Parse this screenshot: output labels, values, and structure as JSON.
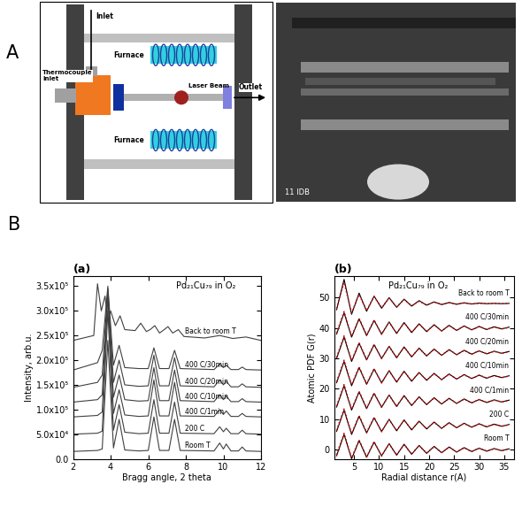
{
  "panel_labels": [
    "A",
    "B"
  ],
  "diagram": {
    "inlet": "Inlet",
    "thermocouple_inlet": "Thermocouple inlet",
    "furnace": [
      "Furnace",
      "Furnace"
    ],
    "laser_beam": "Laser Beam",
    "outlet": "Outlet",
    "photo_caption": "11 IDB"
  },
  "chart_data": [
    {
      "type": "line",
      "title": "(a)",
      "annotations": [
        "Pd₂₁Cu₇₉ in O₂"
      ],
      "x_label": "Bragg angle, 2 theta",
      "y_label": "Intensity, arb.u.",
      "xlim": [
        2,
        12
      ],
      "ylim": [
        0,
        370000
      ],
      "xticks": [
        2,
        4,
        6,
        8,
        10,
        12
      ],
      "yticks": [
        {
          "value": 0,
          "label": "0.0"
        },
        {
          "value": 50000,
          "label": "5.0x10⁴"
        },
        {
          "value": 100000,
          "label": "1.0x10⁵"
        },
        {
          "value": 150000,
          "label": "1.5x10⁵"
        },
        {
          "value": 200000,
          "label": "2.0x10⁵"
        },
        {
          "value": 250000,
          "label": "2.5x10⁵"
        },
        {
          "value": 300000,
          "label": "3.0x10⁵"
        },
        {
          "value": 350000,
          "label": "3.5x10⁵"
        }
      ],
      "series": [
        {
          "name": "Room T",
          "color": "#404040",
          "line_style": "solid",
          "x": [
            2.0,
            3.3,
            3.55,
            3.85,
            4.15,
            4.45,
            4.75,
            5.5,
            6.0,
            6.3,
            6.6,
            7.1,
            7.4,
            7.7,
            9.5,
            9.8,
            10.0,
            10.15,
            10.4,
            10.8,
            11.0,
            11.2,
            12.0
          ],
          "values": [
            15000,
            17000,
            20000,
            240000,
            22000,
            80000,
            18000,
            16000,
            17000,
            85000,
            17000,
            17000,
            80000,
            17000,
            16000,
            32000,
            20000,
            30000,
            16000,
            16000,
            24000,
            16000,
            15000
          ]
        },
        {
          "name": "200 C",
          "color": "#404040",
          "line_style": "solid",
          "x": [
            2.0,
            3.3,
            3.55,
            3.85,
            4.15,
            4.45,
            4.75,
            5.5,
            6.0,
            6.3,
            6.6,
            7.1,
            7.4,
            7.7,
            9.5,
            9.8,
            10.0,
            10.15,
            10.4,
            10.8,
            11.0,
            11.2,
            12.0
          ],
          "values": [
            50000,
            52000,
            56000,
            300000,
            58000,
            110000,
            54000,
            51000,
            52000,
            120000,
            52000,
            52000,
            115000,
            52000,
            51000,
            65000,
            55000,
            62000,
            51000,
            51000,
            58000,
            51000,
            50000
          ]
        },
        {
          "name": "400 C/1min",
          "color": "#404040",
          "line_style": "solid",
          "x": [
            2.0,
            3.3,
            3.55,
            3.85,
            4.15,
            4.45,
            4.75,
            5.5,
            6.0,
            6.3,
            6.6,
            7.1,
            7.4,
            7.7,
            9.5,
            9.8,
            10.0,
            10.15,
            10.4,
            10.8,
            11.0,
            11.2,
            12.0
          ],
          "values": [
            85000,
            88000,
            95000,
            330000,
            92000,
            140000,
            89000,
            86000,
            87000,
            160000,
            87000,
            87000,
            155000,
            87000,
            86000,
            100000,
            90000,
            97000,
            86000,
            86000,
            92000,
            86000,
            85000
          ]
        },
        {
          "name": "400 C/10min",
          "color": "#404040",
          "line_style": "solid",
          "x": [
            2.0,
            3.3,
            3.55,
            3.85,
            4.15,
            4.45,
            4.75,
            5.5,
            6.0,
            6.3,
            6.6,
            7.1,
            7.4,
            7.7,
            9.5,
            9.8,
            10.0,
            10.15,
            10.4,
            10.8,
            11.0,
            11.2,
            12.0
          ],
          "values": [
            115000,
            120000,
            130000,
            340000,
            125000,
            170000,
            120000,
            117000,
            118000,
            185000,
            118000,
            118000,
            180000,
            118000,
            116000,
            130000,
            120000,
            127000,
            116000,
            116000,
            122000,
            116000,
            115000
          ]
        },
        {
          "name": "400 C/20min",
          "color": "#404040",
          "line_style": "solid",
          "x": [
            2.0,
            3.3,
            3.55,
            3.85,
            4.15,
            4.45,
            4.75,
            5.5,
            6.0,
            6.3,
            6.6,
            7.1,
            7.4,
            7.7,
            9.5,
            9.8,
            10.0,
            10.15,
            10.4,
            10.8,
            11.0,
            11.2,
            12.0
          ],
          "values": [
            145000,
            155000,
            170000,
            345000,
            155000,
            200000,
            150000,
            147000,
            148000,
            210000,
            148000,
            148000,
            205000,
            148000,
            146000,
            160000,
            150000,
            157000,
            146000,
            146000,
            152000,
            146000,
            145000
          ]
        },
        {
          "name": "400 C/30min",
          "color": "#404040",
          "line_style": "solid",
          "x": [
            2.0,
            3.3,
            3.55,
            3.85,
            4.15,
            4.45,
            4.75,
            5.5,
            6.0,
            6.3,
            6.6,
            7.1,
            7.4,
            7.7,
            9.5,
            9.8,
            10.0,
            10.15,
            10.4,
            10.8,
            11.0,
            11.2,
            12.0
          ],
          "values": [
            180000,
            195000,
            220000,
            350000,
            190000,
            230000,
            185000,
            183000,
            183000,
            225000,
            183000,
            183000,
            220000,
            183000,
            181000,
            192000,
            185000,
            190000,
            181000,
            181000,
            186000,
            181000,
            180000
          ]
        },
        {
          "name": "Back to room T",
          "color": "#404040",
          "line_style": "solid",
          "x": [
            2.0,
            3.1,
            3.3,
            3.5,
            3.7,
            3.85,
            4.0,
            4.25,
            4.5,
            4.75,
            5.3,
            5.6,
            5.9,
            6.1,
            6.35,
            6.6,
            6.85,
            7.05,
            7.3,
            7.6,
            7.9,
            9.0,
            9.8,
            10.5,
            11.2,
            12.0
          ],
          "values": [
            240000,
            250000,
            355000,
            300000,
            330000,
            280000,
            300000,
            270000,
            290000,
            262000,
            260000,
            275000,
            258000,
            262000,
            270000,
            255000,
            262000,
            268000,
            255000,
            262000,
            248000,
            245000,
            250000,
            244000,
            247000,
            240000
          ]
        }
      ]
    },
    {
      "type": "line",
      "title": "(b)",
      "annotations": [
        "Pd₂₁Cu₇₉ in O₂"
      ],
      "x_label": "Radial distance r(A)",
      "y_label": "Atomic PDF G(r)",
      "xlim": [
        1,
        37
      ],
      "ylim": [
        -3,
        57
      ],
      "xticks": [
        5,
        10,
        15,
        20,
        25,
        30,
        35
      ],
      "yticks": [
        0,
        10,
        20,
        30,
        40,
        50
      ],
      "x": [
        1.5,
        3,
        4.5,
        6,
        7.5,
        9,
        10.5,
        12,
        13.5,
        15,
        16.5,
        18,
        19.5,
        21,
        22.5,
        24,
        25.5,
        27,
        28.5,
        30,
        31.5,
        33,
        34.5,
        36
      ],
      "series": [
        {
          "name": "Room T",
          "color": "#000000",
          "line_style": "solid",
          "values": [
            -2,
            5,
            -3,
            3,
            -2.5,
            2.5,
            -2,
            2,
            -1.8,
            1.8,
            -1.5,
            1.4,
            -1.2,
            1.1,
            -1,
            0.9,
            -0.8,
            0.7,
            -0.6,
            0.5,
            -0.5,
            0.4,
            -0.3,
            0.3
          ]
        },
        {
          "color": "#e00000",
          "line_style": "dotted",
          "values": [
            -1.6,
            5.4,
            -2.7,
            3.2,
            -2.3,
            2.6,
            -2.1,
            1.9,
            -1.7,
            1.7,
            -1.4,
            1.3,
            -1.1,
            1.0,
            -0.9,
            0.8,
            -0.7,
            0.6,
            -0.6,
            0.5,
            -0.4,
            0.3,
            -0.3,
            0.2
          ]
        },
        {
          "name": "200 C",
          "color": "#000000",
          "line_style": "solid",
          "values": [
            6,
            13,
            5,
            11,
            5.5,
            10.5,
            6,
            10,
            6.2,
            9.8,
            6.5,
            9.4,
            6.8,
            9.1,
            7,
            8.9,
            7.2,
            8.7,
            7.4,
            8.5,
            7.5,
            8.4,
            7.7,
            8.3
          ]
        },
        {
          "color": "#e00000",
          "line_style": "dotted",
          "values": [
            6.4,
            13.4,
            5.3,
            11.2,
            5.7,
            10.6,
            5.9,
            9.9,
            6.3,
            9.7,
            6.6,
            9.3,
            6.9,
            9.0,
            7.1,
            8.8,
            7.3,
            8.6,
            7.4,
            8.5,
            7.6,
            8.3,
            7.7,
            8.2
          ]
        },
        {
          "name": "400 C/1min",
          "color": "#000000",
          "line_style": "solid",
          "values": [
            14,
            21,
            13,
            19,
            13.5,
            18.5,
            14,
            18,
            14.2,
            17.8,
            14.5,
            17.4,
            14.8,
            17.1,
            15,
            16.9,
            15.2,
            16.7,
            15.4,
            16.5,
            15.5,
            16.4,
            15.7,
            16.3
          ]
        },
        {
          "color": "#e00000",
          "line_style": "dotted",
          "values": [
            14.4,
            21.4,
            13.3,
            19.2,
            13.7,
            18.6,
            13.9,
            17.9,
            14.3,
            17.7,
            14.6,
            17.3,
            14.9,
            17.0,
            15.1,
            16.8,
            15.3,
            16.6,
            15.4,
            16.5,
            15.6,
            16.3,
            15.7,
            16.2
          ]
        },
        {
          "name": "400 C/10min",
          "color": "#000000",
          "line_style": "solid",
          "values": [
            22,
            29,
            21,
            27,
            21.5,
            26.5,
            22,
            26,
            22.2,
            25.8,
            22.5,
            25.4,
            22.8,
            25.1,
            23,
            24.9,
            23.2,
            24.7,
            23.4,
            24.5,
            23.5,
            24.4,
            23.7,
            24.3
          ]
        },
        {
          "color": "#e00000",
          "line_style": "dotted",
          "values": [
            22.4,
            29.4,
            21.3,
            27.2,
            21.7,
            26.6,
            21.9,
            25.9,
            22.3,
            25.7,
            22.6,
            25.3,
            22.9,
            25.0,
            23.1,
            24.8,
            23.3,
            24.6,
            23.4,
            24.5,
            23.6,
            24.3,
            23.7,
            24.2
          ]
        },
        {
          "name": "400 C/20min",
          "color": "#000000",
          "line_style": "solid",
          "values": [
            30,
            37,
            29,
            35,
            29.5,
            34.5,
            30,
            34,
            30.2,
            33.8,
            30.5,
            33.4,
            30.8,
            33.1,
            31,
            32.9,
            31.2,
            32.7,
            31.4,
            32.5,
            31.5,
            32.4,
            31.7,
            32.3
          ]
        },
        {
          "color": "#e00000",
          "line_style": "dotted",
          "values": [
            30.4,
            37.4,
            29.3,
            35.2,
            29.7,
            34.6,
            29.9,
            33.9,
            30.3,
            33.7,
            30.6,
            33.3,
            30.9,
            33.0,
            31.1,
            32.8,
            31.3,
            32.6,
            31.4,
            32.5,
            31.6,
            32.3,
            31.7,
            32.2
          ]
        },
        {
          "name": "400 C/30min",
          "color": "#000000",
          "line_style": "solid",
          "values": [
            38,
            45,
            37,
            43,
            37.5,
            42.5,
            38,
            42,
            38.2,
            41.8,
            38.5,
            41.4,
            38.8,
            41.1,
            39,
            40.9,
            39.2,
            40.7,
            39.4,
            40.5,
            39.5,
            40.4,
            39.7,
            40.3
          ]
        },
        {
          "color": "#e00000",
          "line_style": "dotted",
          "values": [
            38.4,
            45.4,
            37.3,
            43.2,
            37.7,
            42.6,
            37.9,
            41.9,
            38.3,
            41.7,
            38.6,
            41.3,
            38.9,
            41.0,
            39.1,
            40.8,
            39.3,
            40.6,
            39.4,
            40.5,
            39.6,
            40.3,
            39.7,
            40.2
          ]
        },
        {
          "name": "Back to room T",
          "color": "#000000",
          "line_style": "solid",
          "values": [
            46,
            56,
            44.5,
            51.5,
            45.5,
            50.5,
            46.5,
            50,
            46.8,
            49.5,
            47.2,
            49,
            47.5,
            48.6,
            47.7,
            48.4,
            47.8,
            48.3,
            47.9,
            48.2,
            48,
            48.1,
            48,
            48.1
          ]
        },
        {
          "color": "#e00000",
          "line_style": "dotted",
          "values": [
            46.5,
            55,
            45,
            51,
            45.8,
            50.3,
            46.7,
            49.8,
            47,
            49.3,
            47.3,
            48.8,
            47.6,
            48.5,
            47.8,
            48.3,
            47.9,
            48.2,
            47.9,
            48.1,
            48,
            48.1,
            48,
            48
          ]
        }
      ]
    }
  ]
}
